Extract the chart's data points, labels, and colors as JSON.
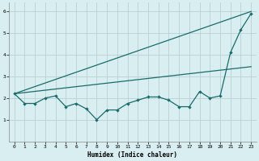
{
  "xlabel": "Humidex (Indice chaleur)",
  "xlim": [
    -0.5,
    23.5
  ],
  "ylim": [
    0,
    6.4
  ],
  "xticks": [
    0,
    1,
    2,
    3,
    4,
    5,
    6,
    7,
    8,
    9,
    10,
    11,
    12,
    13,
    14,
    15,
    16,
    17,
    18,
    19,
    20,
    21,
    22,
    23
  ],
  "yticks": [
    1,
    2,
    3,
    4,
    5,
    6
  ],
  "bg_color": "#d8eef0",
  "grid_color": "#b8d0d4",
  "line_color": "#1a6b6b",
  "line1_x": [
    0,
    1,
    2,
    3,
    4,
    5,
    6,
    7,
    8,
    9,
    10,
    11,
    12,
    13,
    14,
    15,
    16,
    17,
    18,
    19,
    20,
    21,
    22,
    23
  ],
  "line1_y": [
    2.2,
    1.75,
    1.75,
    2.0,
    2.1,
    1.6,
    1.75,
    1.5,
    1.0,
    1.45,
    1.45,
    1.75,
    1.9,
    2.05,
    2.05,
    1.9,
    1.6,
    1.6,
    2.3,
    2.0,
    2.1,
    4.1,
    5.15,
    5.9
  ],
  "line2_x": [
    0,
    23
  ],
  "line2_y": [
    2.2,
    6.0
  ],
  "line3_x": [
    0,
    23
  ],
  "line3_y": [
    2.2,
    3.45
  ]
}
